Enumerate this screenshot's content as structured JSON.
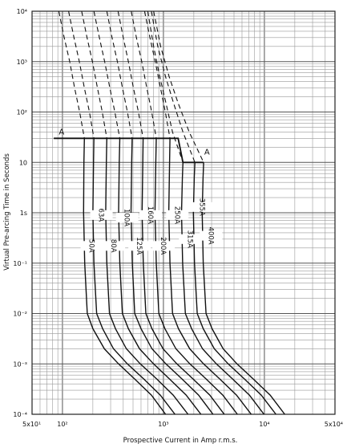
{
  "chart_data": {
    "type": "line",
    "xscale": "log",
    "yscale": "log",
    "xlim": [
      50,
      50000
    ],
    "ylim": [
      0.0001,
      10000
    ],
    "xlabel": "Prospective Current in Amp r.m.s.",
    "ylabel": "Virtual Pre-arcing Time in Seconds",
    "x_ticks": [
      "5x10¹",
      "10²",
      "10³",
      "10⁴",
      "5x10⁴"
    ],
    "y_ticks": [
      "10⁻⁴",
      "10⁻³",
      "10⁻²",
      "10⁻¹",
      "1s",
      "10",
      "10²",
      "10³",
      "10⁴"
    ],
    "grid": true,
    "annotations": [
      {
        "text": "A",
        "x": 98,
        "y": 30
      },
      {
        "text": "A",
        "x": 2700,
        "y": 12
      }
    ],
    "marker_line": {
      "x": [
        82,
        1400,
        1560,
        2500
      ],
      "y": [
        30,
        30,
        10,
        10
      ]
    },
    "series": [
      {
        "name": "50A",
        "x": [
          165,
          163,
          162,
          166,
          176,
          200,
          260,
          360,
          520,
          760,
          1050
        ],
        "y": [
          30,
          10,
          1,
          0.1,
          0.01,
          0.005,
          0.002,
          0.001,
          0.0005,
          0.00024,
          0.0001
        ]
      },
      {
        "name": "63A",
        "x": [
          205,
          203,
          200,
          205,
          218,
          250,
          320,
          440,
          640,
          930,
          1300
        ],
        "y": [
          30,
          10,
          1,
          0.1,
          0.01,
          0.005,
          0.002,
          0.001,
          0.0005,
          0.00024,
          0.0001
        ]
      },
      {
        "name": "80A",
        "x": [
          275,
          272,
          268,
          275,
          292,
          335,
          430,
          590,
          860,
          1250,
          1750
        ],
        "y": [
          30,
          10,
          1,
          0.1,
          0.01,
          0.005,
          0.002,
          0.001,
          0.0005,
          0.00024,
          0.0001
        ]
      },
      {
        "name": "100A",
        "x": [
          370,
          365,
          360,
          370,
          392,
          450,
          580,
          800,
          1150,
          1680,
          2350
        ],
        "y": [
          30,
          10,
          1,
          0.1,
          0.01,
          0.005,
          0.002,
          0.001,
          0.0005,
          0.00024,
          0.0001
        ]
      },
      {
        "name": "125A",
        "x": [
          490,
          485,
          478,
          492,
          520,
          600,
          770,
          1060,
          1530,
          2230,
          3100
        ],
        "y": [
          30,
          10,
          1,
          0.1,
          0.01,
          0.005,
          0.002,
          0.001,
          0.0005,
          0.00024,
          0.0001
        ]
      },
      {
        "name": "160A",
        "x": [
          630,
          625,
          615,
          632,
          670,
          770,
          990,
          1360,
          1970,
          2880,
          4000
        ],
        "y": [
          30,
          10,
          1,
          0.1,
          0.01,
          0.005,
          0.002,
          0.001,
          0.0005,
          0.00024,
          0.0001
        ]
      },
      {
        "name": "200A",
        "x": [
          850,
          840,
          825,
          850,
          900,
          1035,
          1330,
          1830,
          2650,
          3870,
          5400
        ],
        "y": [
          30,
          10,
          1,
          0.1,
          0.01,
          0.005,
          0.002,
          0.001,
          0.0005,
          0.00024,
          0.0001
        ]
      },
      {
        "name": "250A",
        "x": [
          1160,
          1150,
          1130,
          1160,
          1230,
          1410,
          1820,
          2500,
          3620,
          5290,
          7400
        ],
        "y": [
          30,
          10,
          1,
          0.1,
          0.01,
          0.005,
          0.002,
          0.001,
          0.0005,
          0.00024,
          0.0001
        ]
      },
      {
        "name": "315A",
        "x": [
          1560,
          1540,
          1510,
          1550,
          1650,
          1900,
          2440,
          3350,
          4850,
          7100,
          9900
        ],
        "y": [
          10,
          5,
          1,
          0.1,
          0.01,
          0.005,
          0.002,
          0.001,
          0.0005,
          0.00024,
          0.0001
        ]
      },
      {
        "name": "355A",
        "x": [
          2050,
          2020,
          1980,
          2030,
          2160,
          2480,
          3190,
          4380,
          6350,
          9300,
          13000
        ],
        "y": [
          10,
          5,
          1,
          0.1,
          0.01,
          0.005,
          0.002,
          0.001,
          0.0005,
          0.00024,
          0.0001
        ]
      },
      {
        "name": "400A",
        "x": [
          2500,
          2470,
          2420,
          2480,
          2640,
          3030,
          3900,
          5360,
          7760,
          11400,
          15900
        ],
        "y": [
          10,
          5,
          1,
          0.1,
          0.01,
          0.005,
          0.002,
          0.001,
          0.0005,
          0.00024,
          0.0001
        ]
      }
    ],
    "dashed_series": [
      {
        "name": "50A",
        "x": [
          92,
          104,
          118,
          132,
          148,
          165
        ],
        "y": [
          10000,
          3000,
          1000,
          300,
          100,
          30
        ]
      },
      {
        "name": "63A",
        "x": [
          115,
          130,
          147,
          165,
          185,
          205
        ],
        "y": [
          10000,
          3000,
          1000,
          300,
          100,
          30
        ]
      },
      {
        "name": "80A",
        "x": [
          155,
          175,
          198,
          222,
          248,
          275
        ],
        "y": [
          10000,
          3000,
          1000,
          300,
          100,
          30
        ]
      },
      {
        "name": "100A",
        "x": [
          205,
          232,
          262,
          295,
          330,
          370
        ],
        "y": [
          10000,
          3000,
          1000,
          300,
          100,
          30
        ]
      },
      {
        "name": "125A",
        "x": [
          275,
          310,
          350,
          393,
          440,
          490
        ],
        "y": [
          10000,
          3000,
          1000,
          300,
          100,
          30
        ]
      },
      {
        "name": "160A",
        "x": [
          355,
          400,
          450,
          505,
          565,
          630
        ],
        "y": [
          10000,
          3000,
          1000,
          300,
          100,
          30
        ]
      },
      {
        "name": "200A",
        "x": [
          480,
          540,
          610,
          685,
          765,
          850
        ],
        "y": [
          10000,
          3000,
          1000,
          300,
          100,
          30
        ]
      },
      {
        "name": "250A",
        "x": [
          650,
          735,
          830,
          935,
          1045,
          1160
        ],
        "y": [
          10000,
          3000,
          1000,
          300,
          100,
          30
        ]
      },
      {
        "name": "315A",
        "x": [
          700,
          800,
          920,
          1060,
          1230,
          1560
        ],
        "y": [
          10000,
          2000,
          500,
          150,
          40,
          10
        ]
      },
      {
        "name": "355A",
        "x": [
          760,
          880,
          1050,
          1260,
          1560,
          2050
        ],
        "y": [
          10000,
          2000,
          500,
          150,
          40,
          10
        ]
      },
      {
        "name": "400A",
        "x": [
          800,
          940,
          1140,
          1400,
          1800,
          2500
        ],
        "y": [
          10000,
          2000,
          500,
          150,
          40,
          10
        ]
      }
    ],
    "series_labels": [
      {
        "text": "50A",
        "x": 175,
        "y": 0.22
      },
      {
        "text": "63A",
        "x": 218,
        "y": 0.9
      },
      {
        "text": "80A",
        "x": 290,
        "y": 0.22
      },
      {
        "text": "100A",
        "x": 392,
        "y": 0.8
      },
      {
        "text": "125A",
        "x": 520,
        "y": 0.22
      },
      {
        "text": "160A",
        "x": 670,
        "y": 0.9
      },
      {
        "text": "200A",
        "x": 900,
        "y": 0.22
      },
      {
        "text": "250A",
        "x": 1230,
        "y": 0.9
      },
      {
        "text": "315A",
        "x": 1650,
        "y": 0.3
      },
      {
        "text": "355A",
        "x": 2180,
        "y": 1.3
      },
      {
        "text": "400A",
        "x": 2650,
        "y": 0.35
      }
    ]
  }
}
